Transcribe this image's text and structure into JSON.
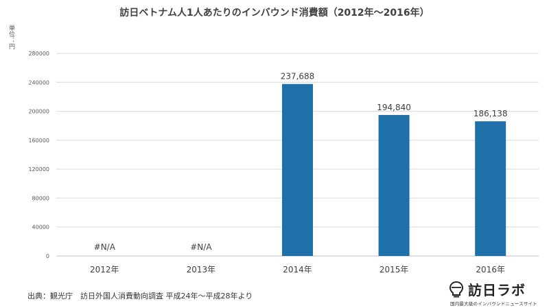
{
  "title": "訪日ベトナム人1人あたりのインバウンド消費額（2012年～2016年）",
  "unit_label": "単位：円",
  "source": "出典：観光庁　訪日外国人消費動向調査 平成24年～平成28年より",
  "brand": {
    "name": "訪日ラボ",
    "tagline": "国内最大級のインバウンドニュースサイト",
    "logo_icon": "lightbulb-logo-icon"
  },
  "colors": {
    "bar": "#1f6fa8",
    "grid": "#d9d9d9",
    "axis_text": "#595959",
    "label_text": "#404040"
  },
  "chart_data": {
    "type": "bar",
    "categories": [
      "2012年",
      "2013年",
      "2014年",
      "2015年",
      "2016年"
    ],
    "values": [
      null,
      null,
      237688,
      194840,
      186138
    ],
    "data_labels": [
      "#N/A",
      "#N/A",
      "237,688",
      "194,840",
      "186,138"
    ],
    "yticks": [
      "0",
      "40000",
      "80000",
      "120000",
      "160000",
      "200000",
      "240000",
      "280000"
    ],
    "ylim": [
      0,
      280000
    ],
    "grid": true,
    "legend": "none"
  }
}
